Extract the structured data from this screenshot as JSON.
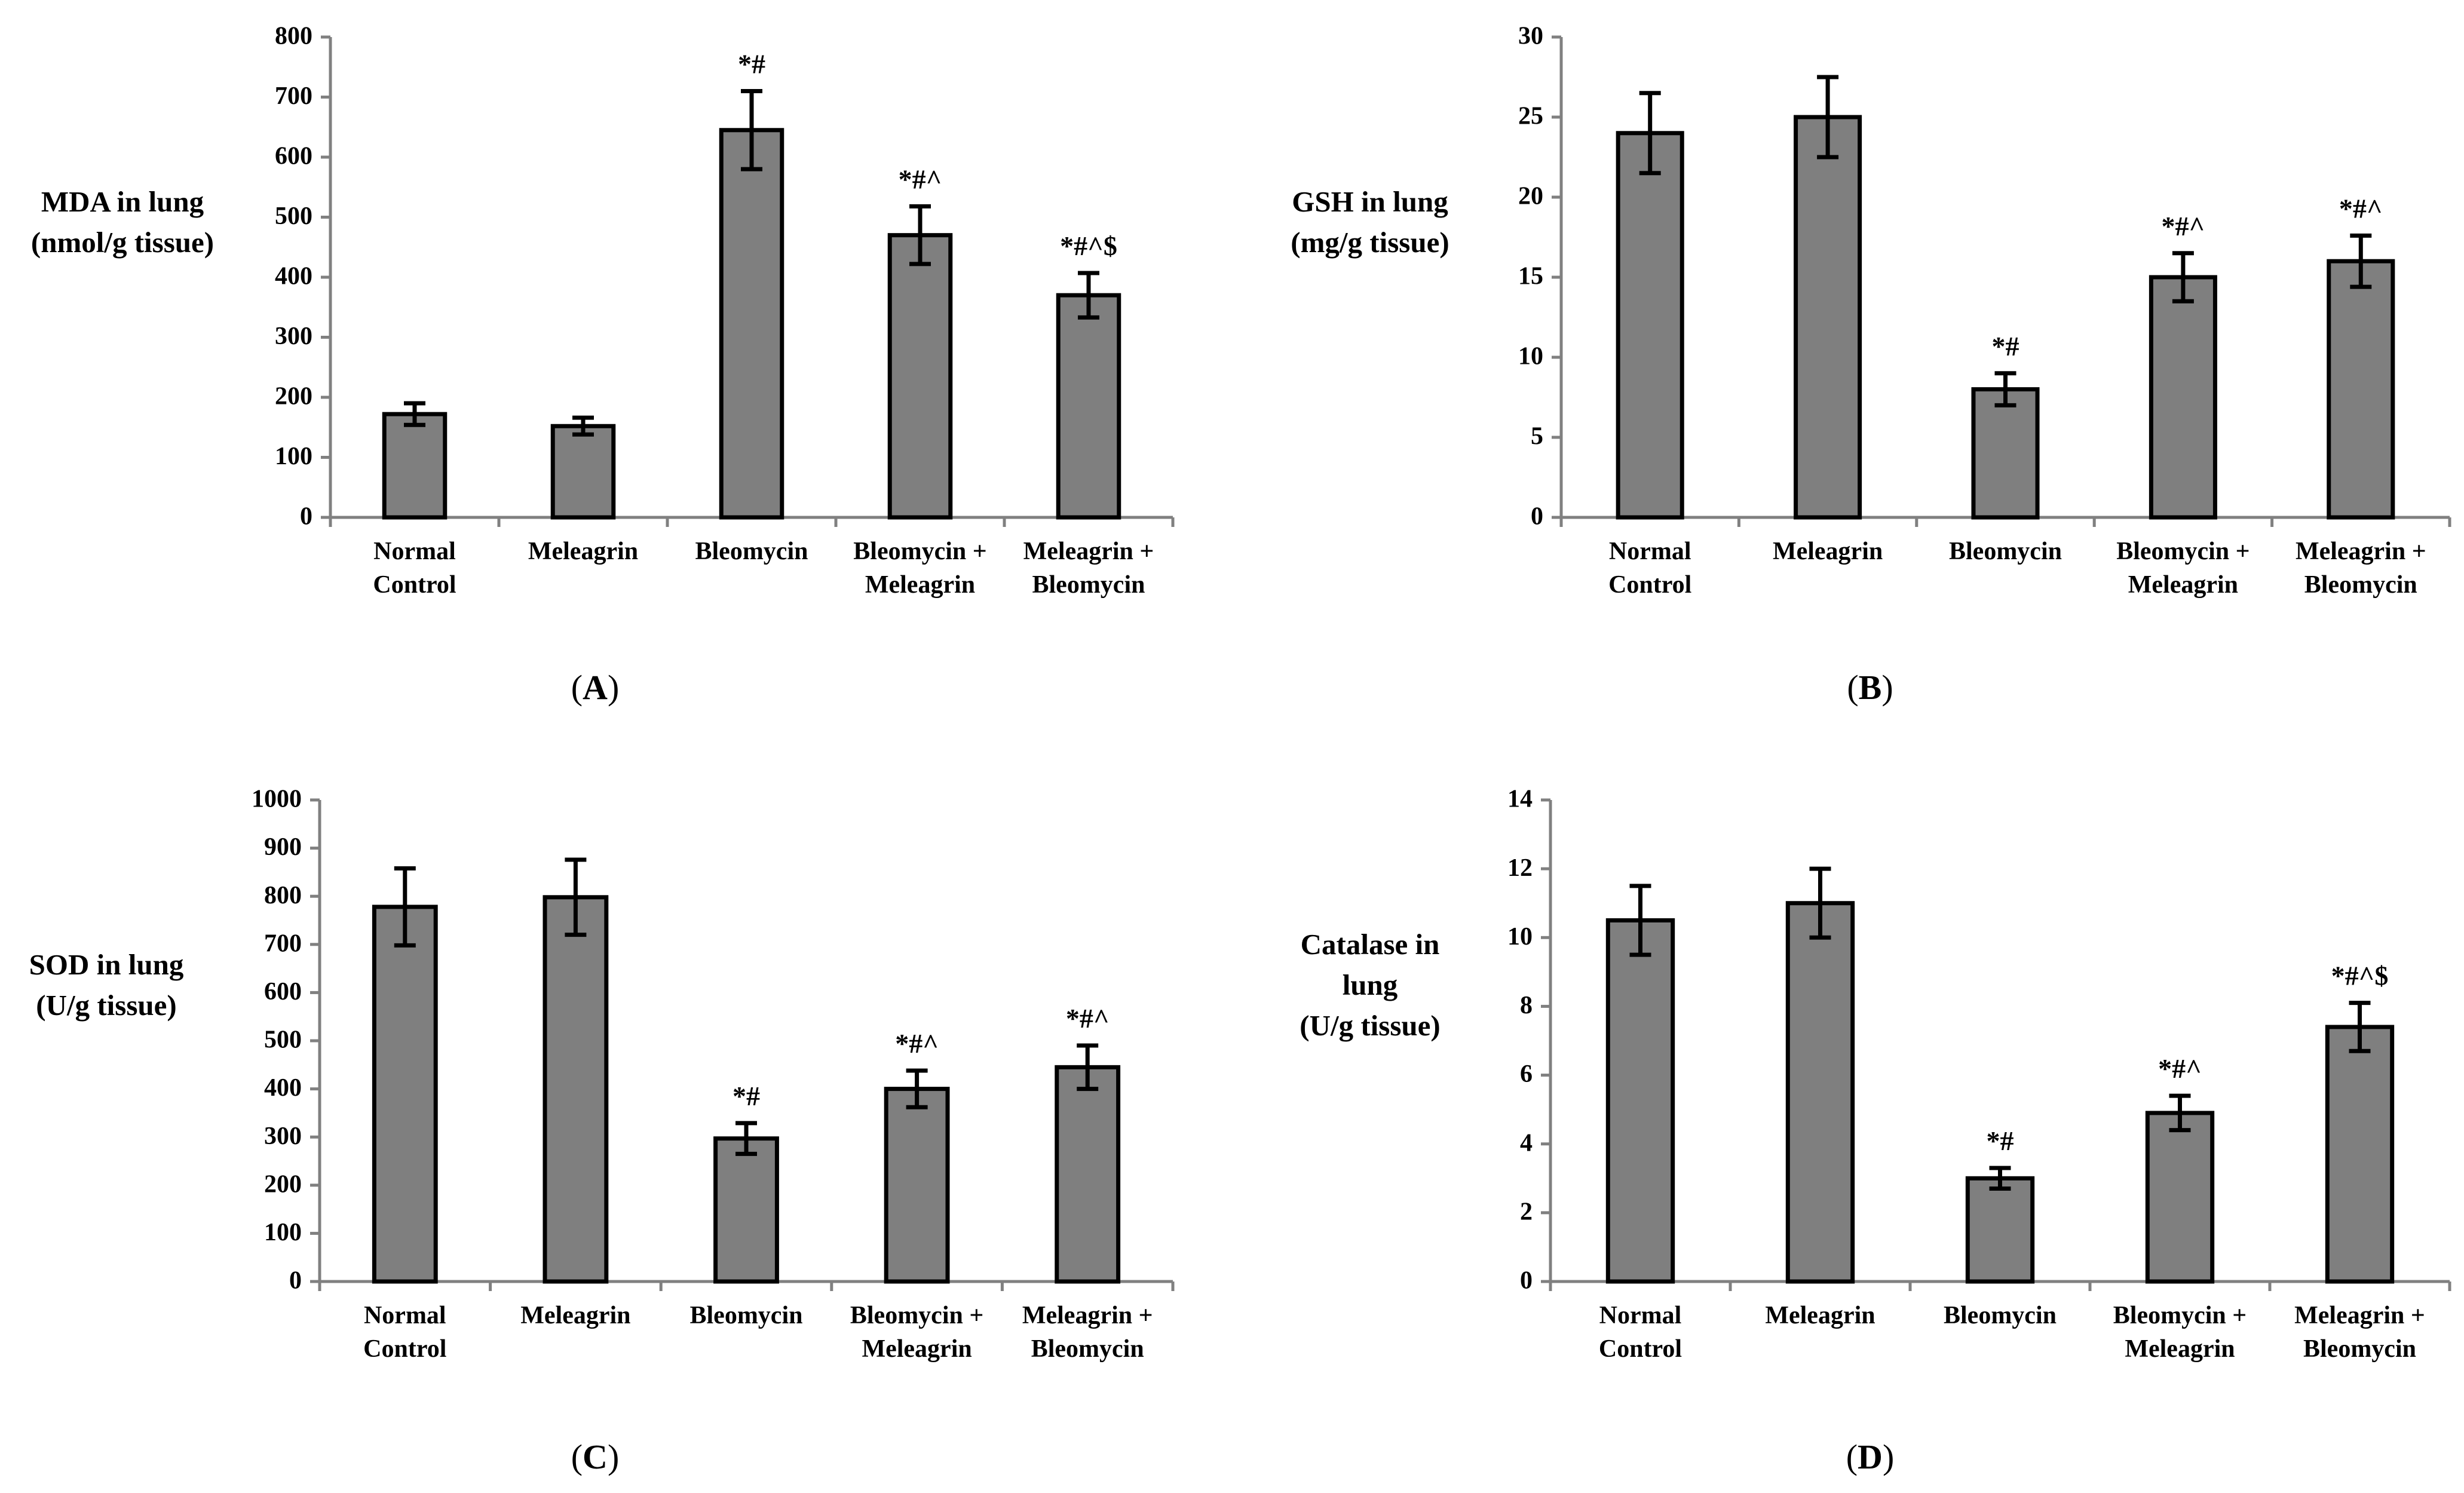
{
  "chart_data": [
    {
      "panel": "(A)",
      "type": "bar",
      "ylabel": [
        "MDA in lung",
        "(nmol/g tissue)"
      ],
      "ylim": [
        0,
        800
      ],
      "yticks": [
        0,
        100,
        200,
        300,
        400,
        500,
        600,
        700,
        800
      ],
      "categories": [
        [
          "Normal",
          "Control"
        ],
        [
          "Meleagrin"
        ],
        [
          "Bleomycin"
        ],
        [
          "Bleomycin +",
          "Meleagrin"
        ],
        [
          "Meleagrin +",
          "Bleomycin"
        ]
      ],
      "values": [
        172,
        152,
        645,
        470,
        370
      ],
      "errors": [
        18,
        14,
        65,
        48,
        37
      ],
      "annotations": [
        "",
        "",
        "*#",
        "*#^",
        "*#^$"
      ]
    },
    {
      "panel": "(B)",
      "type": "bar",
      "ylabel": [
        "GSH in lung",
        "(mg/g tissue)"
      ],
      "ylim": [
        0,
        30
      ],
      "yticks": [
        0,
        5,
        10,
        15,
        20,
        25,
        30
      ],
      "categories": [
        [
          "Normal",
          "Control"
        ],
        [
          "Meleagrin"
        ],
        [
          "Bleomycin"
        ],
        [
          "Bleomycin +",
          "Meleagrin"
        ],
        [
          "Meleagrin +",
          "Bleomycin"
        ]
      ],
      "values": [
        24,
        25,
        8,
        15,
        16
      ],
      "errors": [
        2.5,
        2.5,
        1.0,
        1.5,
        1.6
      ],
      "annotations": [
        "",
        "",
        "*#",
        "*#^",
        "*#^"
      ]
    },
    {
      "panel": "(C)",
      "type": "bar",
      "ylabel": [
        "SOD in lung",
        "(U/g tissue)"
      ],
      "ylim": [
        0,
        1000
      ],
      "yticks": [
        0,
        100,
        200,
        300,
        400,
        500,
        600,
        700,
        800,
        900,
        1000
      ],
      "categories": [
        [
          "Normal",
          "Control"
        ],
        [
          "Meleagrin"
        ],
        [
          "Bleomycin"
        ],
        [
          "Bleomycin +",
          "Meleagrin"
        ],
        [
          "Meleagrin +",
          "Bleomycin"
        ]
      ],
      "values": [
        778,
        798,
        297,
        400,
        445
      ],
      "errors": [
        80,
        78,
        32,
        38,
        45
      ],
      "annotations": [
        "",
        "",
        "*#",
        "*#^",
        "*#^"
      ]
    },
    {
      "panel": "(D)",
      "type": "bar",
      "ylabel": [
        "Catalase in",
        "lung",
        "(U/g tissue)"
      ],
      "ylim": [
        0,
        14
      ],
      "yticks": [
        0,
        2,
        4,
        6,
        8,
        10,
        12,
        14
      ],
      "categories": [
        [
          "Normal",
          "Control"
        ],
        [
          "Meleagrin"
        ],
        [
          "Bleomycin"
        ],
        [
          "Bleomycin +",
          "Meleagrin"
        ],
        [
          "Meleagrin +",
          "Bleomycin"
        ]
      ],
      "values": [
        10.5,
        11,
        3,
        4.9,
        7.4
      ],
      "errors": [
        1.0,
        1.0,
        0.3,
        0.5,
        0.7
      ],
      "annotations": [
        "",
        "",
        "*#",
        "*#^",
        "*#^$"
      ]
    }
  ]
}
